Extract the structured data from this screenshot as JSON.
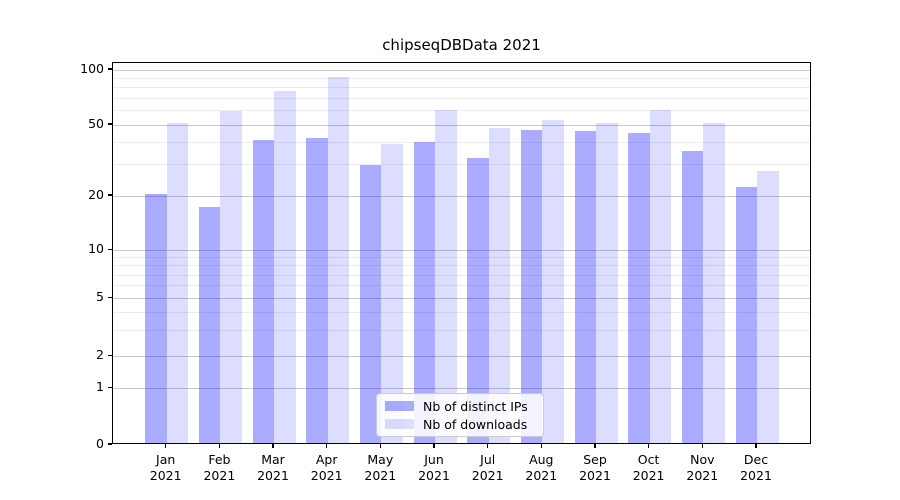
{
  "chart_data": {
    "type": "bar",
    "title": "chipseqDBData 2021",
    "categories": [
      "Jan",
      "Feb",
      "Mar",
      "Apr",
      "May",
      "Jun",
      "Jul",
      "Aug",
      "Sep",
      "Oct",
      "Nov",
      "Dec"
    ],
    "year_label": "2021",
    "series": [
      {
        "name": "Nb of distinct IPs",
        "color": "rgba(0,0,255,0.33)",
        "values": [
          20,
          17,
          40,
          41,
          29,
          39,
          32,
          46,
          45,
          44,
          35,
          22
        ]
      },
      {
        "name": "Nb of downloads",
        "color": "rgba(0,0,255,0.135)",
        "values": [
          50,
          58,
          75,
          89,
          38,
          59,
          47,
          52,
          50,
          59,
          50,
          27
        ]
      }
    ],
    "yscale": "symlog",
    "ylim": [
      0,
      100
    ],
    "ytick_labels": [
      100,
      50,
      20,
      10,
      5,
      2,
      1,
      0
    ],
    "minor_gridlines": [
      3,
      4,
      6,
      7,
      8,
      9,
      30,
      40,
      60,
      70,
      80,
      90
    ],
    "grid": true,
    "legend_position": "lower-center"
  },
  "colors": {
    "major_grid": "#c9c9c9",
    "minor_grid": "#ececec",
    "axis": "#000000"
  }
}
